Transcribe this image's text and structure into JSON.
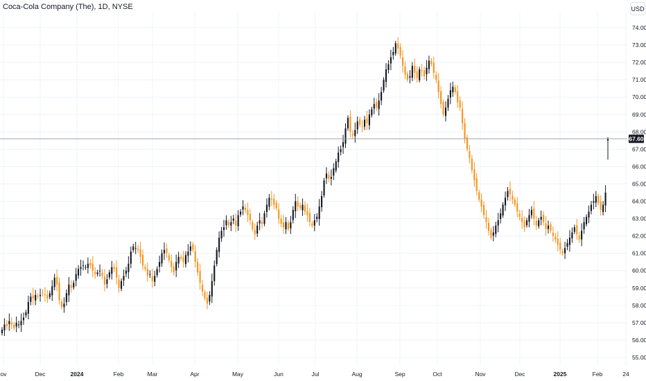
{
  "header": {
    "title": "Coca-Cola Company (The), 1D, NYSE",
    "currency": "USD"
  },
  "chart_data": {
    "type": "candlestick",
    "title": "Coca-Cola Company (The), 1D, NYSE",
    "ylim": [
      54.6,
      74.6
    ],
    "y_ticks": [
      "55.00",
      "56.00",
      "57.00",
      "58.00",
      "59.00",
      "60.00",
      "61.00",
      "62.00",
      "63.00",
      "64.00",
      "65.00",
      "66.00",
      "67.00",
      "68.00",
      "69.00",
      "70.00",
      "71.00",
      "72.00",
      "73.00",
      "74.00"
    ],
    "x_ticks": [
      {
        "label": "ov",
        "bold": false
      },
      {
        "label": "Dec",
        "bold": false
      },
      {
        "label": "2024",
        "bold": true
      },
      {
        "label": "Feb",
        "bold": false
      },
      {
        "label": "Mar",
        "bold": false
      },
      {
        "label": "Apr",
        "bold": false
      },
      {
        "label": "May",
        "bold": false
      },
      {
        "label": "Jun",
        "bold": false
      },
      {
        "label": "Jul",
        "bold": false
      },
      {
        "label": "Aug",
        "bold": false
      },
      {
        "label": "Sep",
        "bold": false
      },
      {
        "label": "Oct",
        "bold": false
      },
      {
        "label": "Nov",
        "bold": false
      },
      {
        "label": "Dec",
        "bold": false
      },
      {
        "label": "2025",
        "bold": true
      },
      {
        "label": "Feb",
        "bold": false
      },
      {
        "label": "24",
        "bold": false
      }
    ],
    "last_price": 67.6,
    "last_price_label": "67.60",
    "up_color": "#131722",
    "down_color": "#f7931a",
    "grid": true,
    "closes": [
      56.6,
      56.9,
      56.8,
      57.1,
      56.9,
      56.7,
      57.0,
      56.9,
      57.1,
      57.3,
      57.6,
      58.2,
      58.5,
      58.4,
      58.6,
      58.5,
      58.6,
      58.7,
      58.6,
      58.4,
      58.7,
      59.1,
      59.6,
      59.2,
      58.3,
      57.9,
      58.1,
      58.7,
      59.2,
      59.0,
      59.3,
      59.8,
      60.1,
      60.2,
      60.3,
      60.2,
      60.4,
      60.3,
      60.0,
      59.8,
      59.9,
      60.0,
      59.7,
      59.2,
      59.5,
      59.9,
      60.2,
      60.1,
      59.6,
      59.0,
      59.4,
      59.7,
      60.0,
      60.4,
      61.1,
      61.4,
      61.3,
      61.2,
      60.8,
      60.3,
      60.1,
      59.7,
      59.8,
      59.4,
      59.7,
      60.1,
      60.5,
      61.0,
      61.2,
      61.0,
      60.6,
      60.2,
      59.9,
      60.5,
      60.8,
      60.7,
      60.5,
      60.9,
      61.1,
      61.4,
      61.2,
      60.5,
      59.9,
      59.3,
      58.8,
      58.4,
      58.1,
      58.6,
      59.4,
      60.3,
      61.2,
      61.9,
      62.3,
      62.5,
      62.9,
      62.6,
      62.8,
      63.0,
      62.6,
      63.2,
      63.4,
      63.7,
      63.5,
      63.2,
      62.9,
      62.4,
      62.1,
      62.6,
      62.9,
      62.7,
      63.3,
      63.8,
      64.2,
      64.1,
      63.8,
      63.6,
      63.0,
      62.7,
      62.5,
      62.8,
      62.4,
      62.8,
      63.5,
      64.0,
      63.7,
      63.6,
      63.8,
      63.4,
      63.2,
      62.8,
      62.6,
      62.9,
      63.1,
      63.7,
      64.3,
      65.2,
      65.6,
      65.3,
      65.4,
      65.9,
      66.3,
      66.8,
      67.0,
      67.4,
      68.2,
      68.8,
      68.0,
      67.8,
      68.1,
      68.6,
      68.4,
      68.3,
      68.7,
      68.5,
      69.0,
      69.3,
      69.6,
      69.4,
      69.8,
      70.3,
      71.0,
      71.6,
      71.9,
      72.3,
      72.6,
      73.1,
      72.8,
      72.4,
      71.8,
      71.3,
      71.0,
      71.2,
      71.8,
      71.4,
      71.1,
      71.6,
      71.5,
      71.2,
      71.7,
      72.1,
      71.9,
      71.4,
      71.0,
      70.3,
      69.6,
      69.0,
      69.4,
      69.9,
      70.4,
      70.6,
      70.3,
      69.7,
      69.4,
      68.5,
      67.6,
      67.0,
      66.5,
      65.8,
      65.2,
      64.6,
      64.1,
      63.7,
      63.2,
      62.8,
      62.3,
      61.9,
      62.2,
      62.6,
      62.9,
      63.3,
      63.8,
      64.2,
      64.6,
      64.4,
      64.1,
      63.8,
      63.4,
      63.1,
      62.8,
      62.5,
      62.9,
      63.2,
      63.5,
      63.0,
      62.6,
      62.9,
      63.1,
      62.8,
      62.4,
      62.6,
      62.3,
      62.0,
      61.8,
      61.5,
      61.2,
      61.0,
      61.3,
      61.6,
      61.9,
      62.2,
      62.5,
      62.1,
      61.8,
      62.3,
      62.8,
      63.1,
      63.4,
      63.8,
      64.0,
      64.3,
      63.9,
      63.5,
      63.8,
      64.5,
      67.6
    ],
    "last_session": {
      "open": 67.5,
      "high": 67.7,
      "low": 66.4,
      "close": 67.6
    },
    "grid_color": "#f0f3fa",
    "background": "#ffffff"
  }
}
